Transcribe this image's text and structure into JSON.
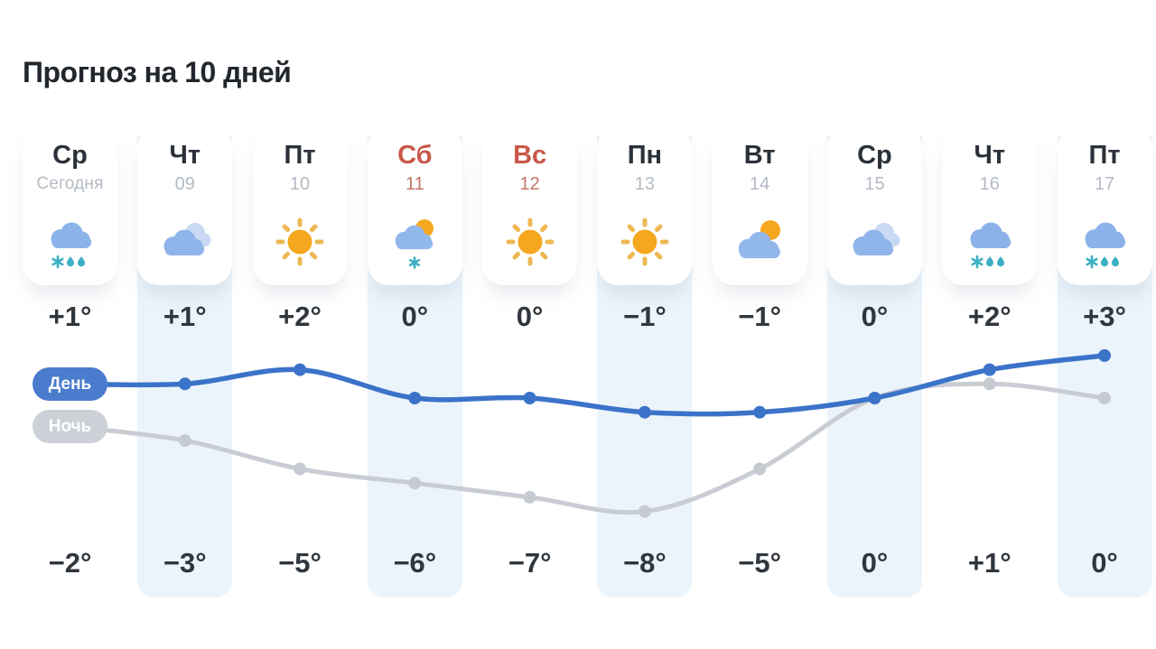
{
  "title": "Прогноз на 10 дней",
  "legend": {
    "day": "День",
    "night": "Ночь"
  },
  "days": [
    {
      "name": "Ср",
      "date": "Сегодня",
      "today": true,
      "weekend": false,
      "icon": "snow-rain",
      "day_temp": "+1°",
      "night_temp": "−2°"
    },
    {
      "name": "Чт",
      "date": "09",
      "today": false,
      "weekend": false,
      "icon": "clouds",
      "day_temp": "+1°",
      "night_temp": "−3°"
    },
    {
      "name": "Пт",
      "date": "10",
      "today": false,
      "weekend": false,
      "icon": "sun",
      "day_temp": "+2°",
      "night_temp": "−5°"
    },
    {
      "name": "Сб",
      "date": "11",
      "today": false,
      "weekend": true,
      "icon": "sun-cloud-snow",
      "day_temp": "0°",
      "night_temp": "−6°"
    },
    {
      "name": "Вс",
      "date": "12",
      "today": false,
      "weekend": true,
      "icon": "sun",
      "day_temp": "0°",
      "night_temp": "−7°"
    },
    {
      "name": "Пн",
      "date": "13",
      "today": false,
      "weekend": false,
      "icon": "sun",
      "day_temp": "−1°",
      "night_temp": "−8°"
    },
    {
      "name": "Вт",
      "date": "14",
      "today": false,
      "weekend": false,
      "icon": "cloud-sun",
      "day_temp": "−1°",
      "night_temp": "−5°"
    },
    {
      "name": "Ср",
      "date": "15",
      "today": false,
      "weekend": false,
      "icon": "clouds",
      "day_temp": "0°",
      "night_temp": "0°"
    },
    {
      "name": "Чт",
      "date": "16",
      "today": false,
      "weekend": false,
      "icon": "snow-rain",
      "day_temp": "+2°",
      "night_temp": "+1°"
    },
    {
      "name": "Пт",
      "date": "17",
      "today": false,
      "weekend": false,
      "icon": "snow-rain",
      "day_temp": "+3°",
      "night_temp": "0°"
    }
  ],
  "chart_data": {
    "type": "line",
    "categories": [
      "Ср",
      "Чт",
      "Пт",
      "Сб",
      "Вс",
      "Пн",
      "Вт",
      "Ср",
      "Чт",
      "Пт"
    ],
    "series": [
      {
        "name": "День",
        "values": [
          1,
          1,
          2,
          0,
          0,
          -1,
          -1,
          0,
          2,
          3
        ],
        "color": "#3b73c9"
      },
      {
        "name": "Ночь",
        "values": [
          -2,
          -3,
          -5,
          -6,
          -7,
          -8,
          -5,
          0,
          1,
          0
        ],
        "color": "#c9cdd3"
      }
    ],
    "legend_position": "left"
  },
  "colors": {
    "day_line": "#3b73c9",
    "night_line": "#c9cdd3",
    "night_dot": "#c6cbd2",
    "day_pill": "#4a7ccd",
    "night_pill": "#ccd1d8",
    "weekend_text": "#c8584a",
    "stripe": "#ebf4fa",
    "sun": "#f5a71e",
    "sun_ray": "#eeb854",
    "cloud": "#8fb4ea",
    "cloud_light": "#c9d8f3",
    "precip_teal": "#3dafc3"
  }
}
